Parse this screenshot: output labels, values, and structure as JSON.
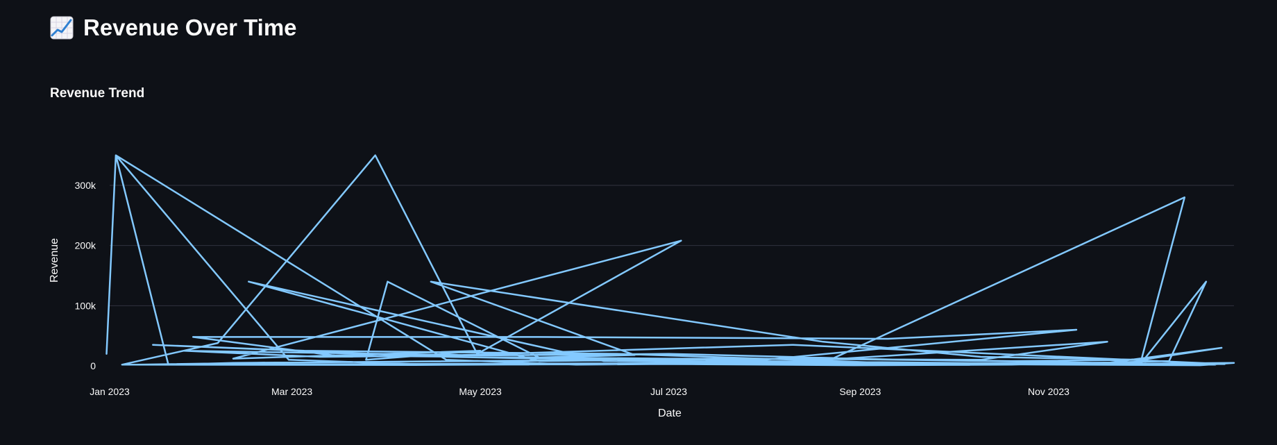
{
  "page": {
    "title": "Revenue Over Time",
    "title_icon": "chart-increasing-icon"
  },
  "section": {
    "title": "Revenue Trend"
  },
  "colors": {
    "background": "#0e1117",
    "line": "#83c9ff",
    "grid": "#31333f",
    "text": "#fafafa"
  },
  "chart_data": {
    "type": "line",
    "title": "",
    "xlabel": "Date",
    "ylabel": "Revenue",
    "xlim": [
      "2023-01-01",
      "2023-12-31"
    ],
    "ylim": [
      0,
      360000
    ],
    "grid": true,
    "legend": "none",
    "x_ticks": [
      "Jan 2023",
      "Mar 2023",
      "May 2023",
      "Jul 2023",
      "Sep 2023",
      "Nov 2023"
    ],
    "y_ticks": [
      "0",
      "100k",
      "200k",
      "300k"
    ],
    "series": [
      {
        "points": [
          [
            "2022-12-31",
            20000
          ],
          [
            "2023-01-03",
            350000
          ],
          [
            "2023-02-28",
            10000
          ],
          [
            "2023-04-15",
            2000
          ],
          [
            "2023-06-30",
            3000
          ],
          [
            "2023-08-30",
            1000
          ],
          [
            "2023-10-20",
            2000
          ],
          [
            "2023-12-10",
            8000
          ],
          [
            "2023-12-22",
            140000
          ],
          [
            "2023-12-01",
            5000
          ],
          [
            "2023-09-15",
            4000
          ],
          [
            "2023-06-15",
            20000
          ],
          [
            "2023-03-05",
            25000
          ],
          [
            "2023-01-15",
            35000
          ],
          [
            "2023-04-20",
            15000
          ],
          [
            "2023-08-05",
            5000
          ],
          [
            "2023-11-20",
            40000
          ],
          [
            "2023-10-10",
            10000
          ],
          [
            "2023-07-01",
            12000
          ],
          [
            "2023-03-15",
            17000
          ],
          [
            "2023-01-28",
            48000
          ],
          [
            "2023-05-20",
            48000
          ],
          [
            "2023-09-10",
            45000
          ],
          [
            "2023-11-10",
            60000
          ],
          [
            "2023-08-01",
            10000
          ],
          [
            "2023-05-01",
            8000
          ],
          [
            "2023-02-10",
            5000
          ],
          [
            "2023-01-20",
            2000
          ],
          [
            "2023-01-03",
            350000
          ],
          [
            "2023-04-20",
            10000
          ],
          [
            "2023-06-01",
            2000
          ],
          [
            "2023-08-20",
            5000
          ],
          [
            "2023-12-15",
            280000
          ],
          [
            "2023-12-01",
            10000
          ],
          [
            "2023-10-20",
            8000
          ],
          [
            "2023-08-10",
            12000
          ],
          [
            "2023-05-20",
            8000
          ],
          [
            "2023-02-15",
            140000
          ],
          [
            "2023-06-10",
            8000
          ],
          [
            "2023-09-25",
            3000
          ],
          [
            "2023-12-20",
            1000
          ],
          [
            "2023-12-31",
            5000
          ],
          [
            "2023-11-15",
            3000
          ],
          [
            "2023-09-01",
            2000
          ],
          [
            "2023-06-20",
            3000
          ],
          [
            "2023-04-10",
            1500
          ],
          [
            "2023-01-05",
            2000
          ],
          [
            "2023-02-05",
            38000
          ],
          [
            "2023-03-28",
            350000
          ],
          [
            "2023-04-30",
            20000
          ],
          [
            "2023-07-05",
            208000
          ],
          [
            "2023-02-10",
            12000
          ],
          [
            "2023-05-01",
            25000
          ],
          [
            "2023-03-25",
            10000
          ],
          [
            "2023-04-01",
            140000
          ],
          [
            "2023-05-20",
            14000
          ],
          [
            "2023-06-20",
            18000
          ],
          [
            "2023-04-15",
            140000
          ],
          [
            "2023-08-20",
            40000
          ],
          [
            "2023-10-10",
            15000
          ],
          [
            "2023-12-01",
            10000
          ],
          [
            "2023-12-27",
            30000
          ],
          [
            "2023-11-20",
            5000
          ],
          [
            "2023-09-15",
            10000
          ],
          [
            "2023-07-01",
            20000
          ],
          [
            "2023-03-10",
            15000
          ],
          [
            "2023-01-25",
            25000
          ],
          [
            "2023-04-25",
            18000
          ],
          [
            "2023-08-10",
            35000
          ],
          [
            "2023-10-15",
            20000
          ],
          [
            "2023-12-28",
            3000
          ],
          [
            "2023-08-01",
            5000
          ],
          [
            "2023-04-01",
            3000
          ],
          [
            "2023-01-10",
            2000
          ],
          [
            "2023-02-15",
            5000
          ],
          [
            "2023-06-15",
            10000
          ],
          [
            "2023-11-10",
            3000
          ],
          [
            "2023-12-25",
            2000
          ]
        ]
      }
    ]
  }
}
